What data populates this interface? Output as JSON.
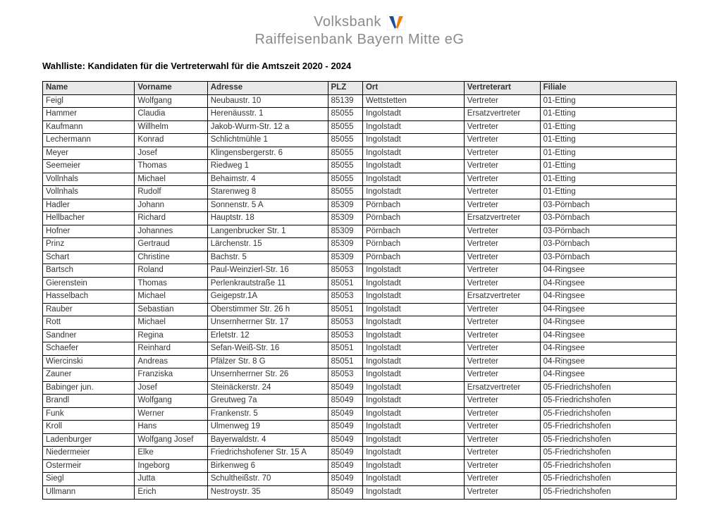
{
  "logo": {
    "line1": "Volksbank",
    "line2": "Raiffeisenbank Bayern Mitte eG",
    "mark_bg": "#ffffff",
    "mark_blue": "#1a4a9c",
    "mark_orange": "#ef7d00",
    "mark_border": "#cfcfcf"
  },
  "title": "Wahlliste: Kandidaten für die Vertreterwahl für die Amtszeit 2020 - 2024",
  "table": {
    "header_bg": "#e8e8e8",
    "border_color": "#000000",
    "columns": [
      {
        "key": "name",
        "label": "Name",
        "class": "col-name"
      },
      {
        "key": "vorname",
        "label": "Vorname",
        "class": "col-vorname"
      },
      {
        "key": "adresse",
        "label": "Adresse",
        "class": "col-adresse"
      },
      {
        "key": "plz",
        "label": "PLZ",
        "class": "col-plz"
      },
      {
        "key": "ort",
        "label": "Ort",
        "class": "col-ort"
      },
      {
        "key": "art",
        "label": "Vertreterart",
        "class": "col-art"
      },
      {
        "key": "filiale",
        "label": "Filiale",
        "class": "col-filiale"
      }
    ],
    "rows": [
      [
        "Feigl",
        "Wolfgang",
        "Neubaustr. 10",
        "85139",
        "Wettstetten",
        "Vertreter",
        "01-Etting"
      ],
      [
        "Hammer",
        "Claudia",
        "Herenäusstr. 1",
        "85055",
        "Ingolstadt",
        "Ersatzvertreter",
        "01-Etting"
      ],
      [
        "Kaufmann",
        "Willhelm",
        "Jakob-Wurm-Str. 12 a",
        "85055",
        "Ingolstadt",
        "Vertreter",
        "01-Etting"
      ],
      [
        "Lechermann",
        "Konrad",
        "Schlichtmühle 1",
        "85055",
        "Ingolstadt",
        "Vertreter",
        "01-Etting"
      ],
      [
        "Meyer",
        "Josef",
        "Klingensbergerstr. 6",
        "85055",
        "Ingolstadt",
        "Vertreter",
        "01-Etting"
      ],
      [
        "Seemeier",
        "Thomas",
        "Riedweg 1",
        "85055",
        "Ingolstadt",
        "Vertreter",
        "01-Etting"
      ],
      [
        "Vollnhals",
        "Michael",
        "Behaimstr. 4",
        "85055",
        "Ingolstadt",
        "Vertreter",
        "01-Etting"
      ],
      [
        "Vollnhals",
        "Rudolf",
        "Starenweg 8",
        "85055",
        "Ingolstadt",
        "Vertreter",
        "01-Etting"
      ],
      [
        "Hadler",
        "Johann",
        "Sonnenstr. 5 A",
        "85309",
        "Pörnbach",
        "Vertreter",
        "03-Pörnbach"
      ],
      [
        "Hellbacher",
        "Richard",
        "Hauptstr. 18",
        "85309",
        "Pörnbach",
        "Ersatzvertreter",
        "03-Pörnbach"
      ],
      [
        "Hofner",
        "Johannes",
        "Langenbrucker Str. 1",
        "85309",
        "Pörnbach",
        "Vertreter",
        "03-Pörnbach"
      ],
      [
        "Prinz",
        "Gertraud",
        "Lärchenstr. 15",
        "85309",
        "Pörnbach",
        "Vertreter",
        "03-Pörnbach"
      ],
      [
        "Schart",
        "Christine",
        "Bachstr. 5",
        "85309",
        "Pörnbach",
        "Vertreter",
        "03-Pörnbach"
      ],
      [
        "Bartsch",
        "Roland",
        "Paul-Weinzierl-Str. 16",
        "85053",
        "Ingolstadt",
        "Vertreter",
        "04-Ringsee"
      ],
      [
        "Gierenstein",
        "Thomas",
        "Perlenkrautstraße 11",
        "85051",
        "Ingolstadt",
        "Vertreter",
        "04-Ringsee"
      ],
      [
        "Hasselbach",
        "Michael",
        "Geigерstr.1A",
        "85053",
        "Ingolstadt",
        "Ersatzvertreter",
        "04-Ringsee"
      ],
      [
        "Rauber",
        "Sebastian",
        "Oberstimmer Str. 26 h",
        "85051",
        "Ingolstadt",
        "Vertreter",
        "04-Ringsee"
      ],
      [
        "Rott",
        "Michael",
        "Unsernherrner Str. 17",
        "85053",
        "Ingolstadt",
        "Vertreter",
        "04-Ringsee"
      ],
      [
        "Sandner",
        "Regina",
        "Erletstr. 12",
        "85053",
        "Ingolstadt",
        "Vertreter",
        "04-Ringsee"
      ],
      [
        "Schaefer",
        "Reinhard",
        "Sefan-Weiß-Str. 16",
        "85051",
        "Ingolstadt",
        "Vertreter",
        "04-Ringsee"
      ],
      [
        "Wiercinski",
        "Andreas",
        "Pfälzer Str. 8 G",
        "85051",
        "Ingolstadt",
        "Vertreter",
        "04-Ringsee"
      ],
      [
        "Zauner",
        "Franziska",
        "Unsernherrner Str. 26",
        "85053",
        "Ingolstadt",
        "Vertreter",
        "04-Ringsee"
      ],
      [
        "Babinger jun.",
        "Josef",
        "Steinäckerstr. 24",
        "85049",
        "Ingolstadt",
        "Ersatzvertreter",
        "05-Friedrichshofen"
      ],
      [
        "Brandl",
        "Wolfgang",
        "Greutweg 7a",
        "85049",
        "Ingolstadt",
        "Vertreter",
        "05-Friedrichshofen"
      ],
      [
        "Funk",
        "Werner",
        "Frankenstr. 5",
        "85049",
        "Ingolstadt",
        "Vertreter",
        "05-Friedrichshofen"
      ],
      [
        "Kroll",
        "Hans",
        "Ulmenweg 19",
        "85049",
        "Ingolstadt",
        "Vertreter",
        "05-Friedrichshofen"
      ],
      [
        "Ladenburger",
        "Wolfgang Josef",
        "Bayerwaldstr. 4",
        "85049",
        "Ingolstadt",
        "Vertreter",
        "05-Friedrichshofen"
      ],
      [
        "Niedermeier",
        "Elke",
        "Friedrichshofener Str. 15 A",
        "85049",
        "Ingolstadt",
        "Vertreter",
        "05-Friedrichshofen"
      ],
      [
        "Ostermeir",
        "Ingeborg",
        "Birkenweg 6",
        "85049",
        "Ingolstadt",
        "Vertreter",
        "05-Friedrichshofen"
      ],
      [
        "Siegl",
        "Jutta",
        "Schultheißstr. 70",
        "85049",
        "Ingolstadt",
        "Vertreter",
        "05-Friedrichshofen"
      ],
      [
        "Ullmann",
        "Erich",
        "Nestroystr. 35",
        "85049",
        "Ingolstadt",
        "Vertreter",
        "05-Friedrichshofen"
      ]
    ]
  }
}
